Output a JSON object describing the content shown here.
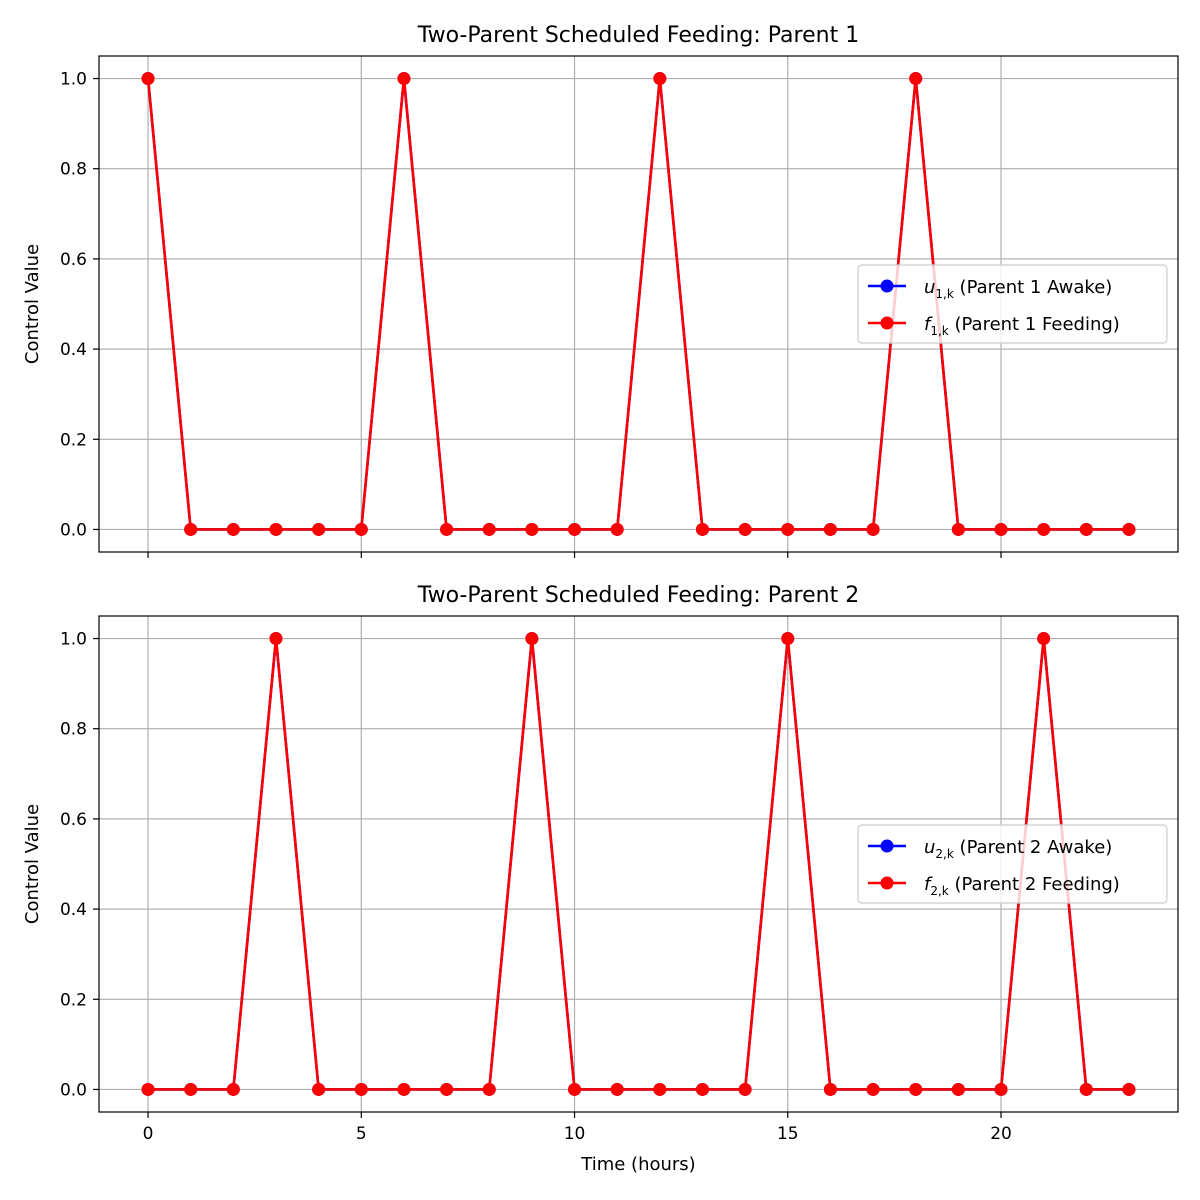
{
  "chart_data": [
    {
      "type": "line",
      "title": "Two-Parent Scheduled Feeding: Parent 1",
      "ylabel": "Control Value",
      "xlabel": "",
      "xlim": [
        -1.15,
        24.15
      ],
      "ylim": [
        -0.05,
        1.05
      ],
      "xticks": [
        0,
        5,
        10,
        15,
        20
      ],
      "xtick_labels_visible": false,
      "yticks": [
        0.0,
        0.2,
        0.4,
        0.6,
        0.8,
        1.0
      ],
      "ytick_labels": [
        "0.0",
        "0.2",
        "0.4",
        "0.6",
        "0.8",
        "1.0"
      ],
      "grid": true,
      "legend_loc": "center-right",
      "x": [
        0,
        1,
        2,
        3,
        4,
        5,
        6,
        7,
        8,
        9,
        10,
        11,
        12,
        13,
        14,
        15,
        16,
        17,
        18,
        19,
        20,
        21,
        22,
        23
      ],
      "series": [
        {
          "legend_math": "u",
          "legend_sub": "1,k",
          "legend_text": " (Parent 1 Awake)",
          "color": "#0000ff",
          "values": [
            1,
            0,
            0,
            0,
            0,
            0,
            1,
            0,
            0,
            0,
            0,
            0,
            1,
            0,
            0,
            0,
            0,
            0,
            1,
            0,
            0,
            0,
            0,
            0
          ]
        },
        {
          "legend_math": "f",
          "legend_sub": "1,k",
          "legend_text": " (Parent 1 Feeding)",
          "color": "#ff0000",
          "values": [
            1,
            0,
            0,
            0,
            0,
            0,
            1,
            0,
            0,
            0,
            0,
            0,
            1,
            0,
            0,
            0,
            0,
            0,
            1,
            0,
            0,
            0,
            0,
            0
          ]
        }
      ]
    },
    {
      "type": "line",
      "title": "Two-Parent Scheduled Feeding: Parent 2",
      "ylabel": "Control Value",
      "xlabel": "Time (hours)",
      "xlim": [
        -1.15,
        24.15
      ],
      "ylim": [
        -0.05,
        1.05
      ],
      "xticks": [
        0,
        5,
        10,
        15,
        20
      ],
      "xtick_labels": [
        "0",
        "5",
        "10",
        "15",
        "20"
      ],
      "xtick_labels_visible": true,
      "yticks": [
        0.0,
        0.2,
        0.4,
        0.6,
        0.8,
        1.0
      ],
      "ytick_labels": [
        "0.0",
        "0.2",
        "0.4",
        "0.6",
        "0.8",
        "1.0"
      ],
      "grid": true,
      "legend_loc": "center-right",
      "x": [
        0,
        1,
        2,
        3,
        4,
        5,
        6,
        7,
        8,
        9,
        10,
        11,
        12,
        13,
        14,
        15,
        16,
        17,
        18,
        19,
        20,
        21,
        22,
        23
      ],
      "series": [
        {
          "legend_math": "u",
          "legend_sub": "2,k",
          "legend_text": " (Parent 2 Awake)",
          "color": "#0000ff",
          "values": [
            0,
            0,
            0,
            1,
            0,
            0,
            0,
            0,
            0,
            1,
            0,
            0,
            0,
            0,
            0,
            1,
            0,
            0,
            0,
            0,
            0,
            1,
            0,
            0
          ]
        },
        {
          "legend_math": "f",
          "legend_sub": "2,k",
          "legend_text": " (Parent 2 Feeding)",
          "color": "#ff0000",
          "values": [
            0,
            0,
            0,
            1,
            0,
            0,
            0,
            0,
            0,
            1,
            0,
            0,
            0,
            0,
            0,
            1,
            0,
            0,
            0,
            0,
            0,
            1,
            0,
            0
          ]
        }
      ]
    }
  ]
}
